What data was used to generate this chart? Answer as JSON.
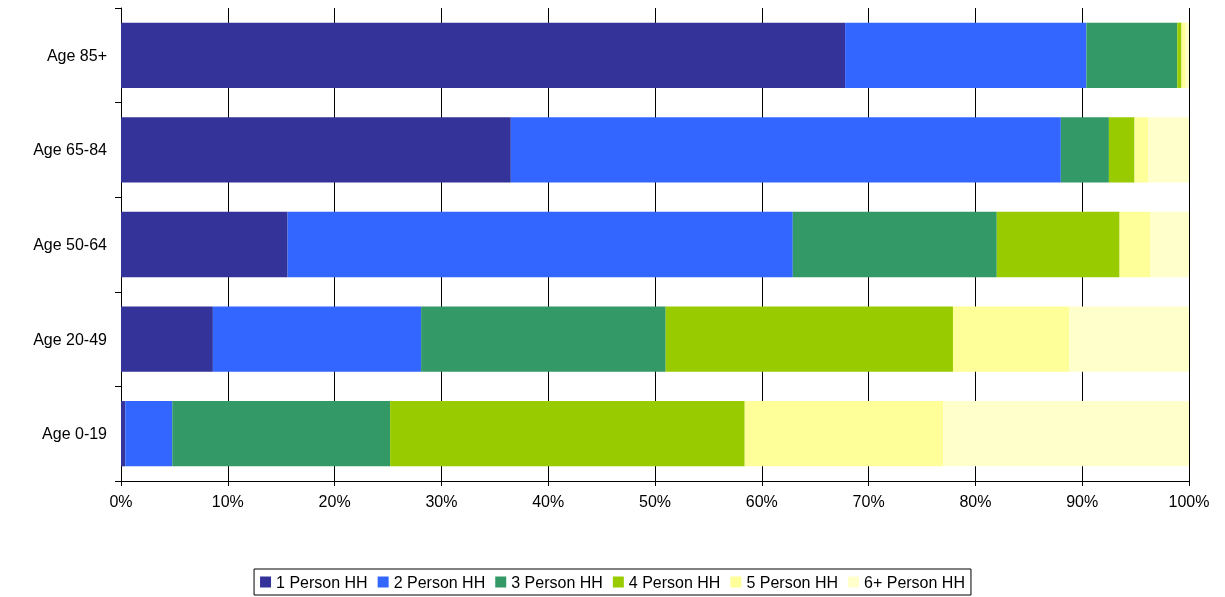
{
  "chart_data": {
    "type": "bar",
    "orientation": "horizontal",
    "stacked": true,
    "categories": [
      "Age 85+",
      "Age 65-84",
      "Age 50-64",
      "Age 20-49",
      "Age 0-19"
    ],
    "series": [
      {
        "name": "1 Person HH",
        "color": "#333399",
        "values": [
          67.8,
          36.5,
          15.6,
          8.6,
          0.4
        ]
      },
      {
        "name": "2 Person HH",
        "color": "#3366ff",
        "values": [
          22.6,
          51.5,
          47.3,
          19.5,
          4.4
        ]
      },
      {
        "name": "3 Person HH",
        "color": "#339966",
        "values": [
          8.5,
          4.5,
          19.1,
          22.9,
          20.4
        ]
      },
      {
        "name": "4 Person HH",
        "color": "#99cc00",
        "values": [
          0.4,
          2.4,
          11.5,
          26.9,
          33.2
        ]
      },
      {
        "name": "5 Person HH",
        "color": "#ffff99",
        "values": [
          0.4,
          1.3,
          2.9,
          10.9,
          18.6
        ]
      },
      {
        "name": "6+ Person HH",
        "color": "#ffffcc",
        "values": [
          0.3,
          3.8,
          3.6,
          11.2,
          23.0
        ]
      }
    ],
    "xlim": [
      0,
      100
    ],
    "xticks": [
      {
        "value": 0,
        "label": "0%"
      },
      {
        "value": 10,
        "label": "10%"
      },
      {
        "value": 20,
        "label": "20%"
      },
      {
        "value": 30,
        "label": "30%"
      },
      {
        "value": 40,
        "label": "40%"
      },
      {
        "value": 50,
        "label": "50%"
      },
      {
        "value": 60,
        "label": "60%"
      },
      {
        "value": 70,
        "label": "70%"
      },
      {
        "value": 80,
        "label": "80%"
      },
      {
        "value": 90,
        "label": "90%"
      },
      {
        "value": 100,
        "label": "100%"
      }
    ],
    "grid": "x",
    "legend": "bottom"
  }
}
